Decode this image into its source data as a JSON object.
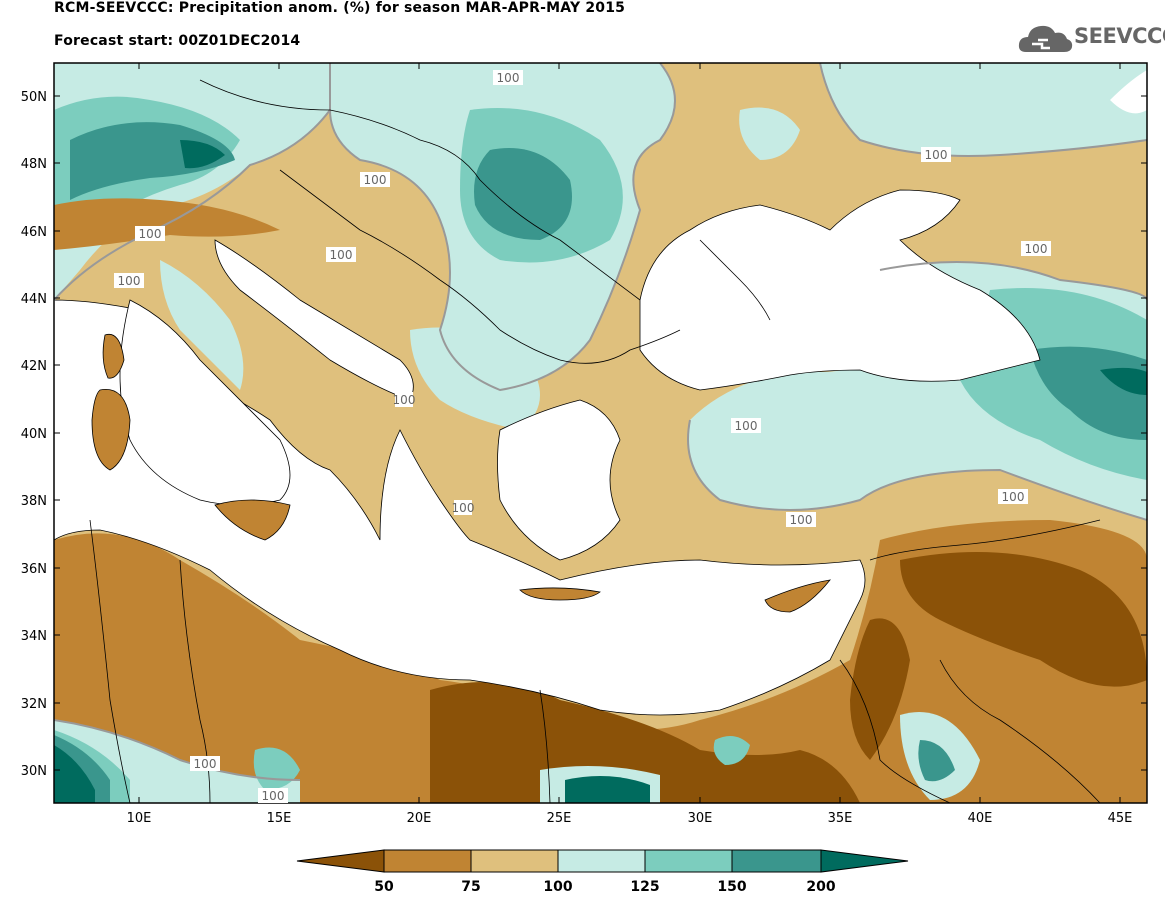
{
  "header": {
    "title_line1": "RCM-SEEVCCC: Precipitation anom. (%) for season MAR-APR-MAY 2015",
    "title_line2": "Forecast start: 00Z01DEC2014"
  },
  "logo": {
    "text": "SEEVCCC",
    "icon": "cloud-icon"
  },
  "map": {
    "lat_labels": [
      "50N",
      "48N",
      "46N",
      "44N",
      "42N",
      "40N",
      "38N",
      "36N",
      "34N",
      "32N",
      "30N"
    ],
    "lon_labels": [
      "10E",
      "15E",
      "20E",
      "25E",
      "30E",
      "35E",
      "40E",
      "45E"
    ],
    "contour_labels": [
      "100",
      "100",
      "100",
      "100",
      "100",
      "100",
      "100",
      "100",
      "100",
      "100",
      "100",
      "100",
      "100",
      "100"
    ]
  },
  "colorbar": {
    "labels": [
      "50",
      "75",
      "100",
      "125",
      "150",
      "200"
    ],
    "colors": [
      "#8b5208",
      "#c08433",
      "#dfc07d",
      "#c6ebe4",
      "#7ccdbe",
      "#3a968d",
      "#006b5e"
    ]
  },
  "colors": {
    "dry_strong": "#8b5208",
    "dry": "#c08433",
    "dry_light": "#dfc07d",
    "wet_light": "#c6ebe4",
    "wet": "#7ccdbe",
    "wet_strong": "#3a968d",
    "wet_extreme": "#006b5e",
    "sea": "#ffffff",
    "contour_line": "#999999"
  }
}
